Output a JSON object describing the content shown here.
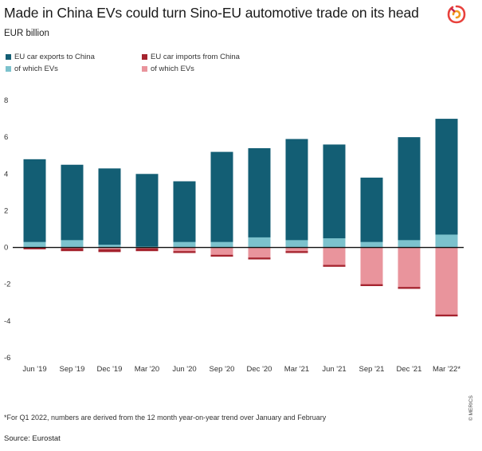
{
  "title": "Made in China EVs could turn Sino-EU automotive trade on its head",
  "subtitle": "EUR billion",
  "logo": {
    "icon": "merics-logo-icon"
  },
  "legend": [
    {
      "label": "EU car exports to China",
      "color": "#135e74"
    },
    {
      "label": "EU car imports from China",
      "color": "#a5232e"
    },
    {
      "label": "of which EVs",
      "color": "#7cc2cd"
    },
    {
      "label": "of which EVs",
      "color": "#e9949c"
    }
  ],
  "footnote": "*For Q1 2022, numbers are derived from the 12 month year-on-year trend over January and February",
  "source": "Source: Eurostat",
  "credit": "© MERICS",
  "chart_data": {
    "type": "bar",
    "title": "Made in China EVs could turn Sino-EU automotive trade on its head",
    "ylabel": "EUR billion",
    "xlabel": "",
    "ylim": [
      -6,
      8
    ],
    "yticks": [
      8,
      6,
      4,
      2,
      0,
      -2,
      -4,
      -6
    ],
    "categories": [
      "Jun '19",
      "Sep '19",
      "Dec '19",
      "Mar '20",
      "Jun '20",
      "Sep '20",
      "Dec '20",
      "Mar '21",
      "Jun '21",
      "Sep '21",
      "Dec '21",
      "Mar '22*"
    ],
    "series": [
      {
        "name": "EU car exports to China",
        "color": "#135e74",
        "values": [
          4.8,
          4.5,
          4.3,
          4.0,
          3.6,
          5.2,
          5.4,
          5.9,
          5.6,
          3.8,
          6.0,
          7.0
        ]
      },
      {
        "name": "EU car exports to China: of which EVs",
        "color": "#7cc2cd",
        "values": [
          0.3,
          0.4,
          0.15,
          0.05,
          0.3,
          0.3,
          0.55,
          0.4,
          0.5,
          0.3,
          0.4,
          0.7
        ]
      },
      {
        "name": "EU car imports from China",
        "color": "#a5232e",
        "values": [
          -0.1,
          -0.2,
          -0.25,
          -0.2,
          -0.3,
          -0.5,
          -0.65,
          -0.3,
          -1.05,
          -2.1,
          -2.25,
          -3.75
        ]
      },
      {
        "name": "EU car imports from China: of which EVs",
        "color": "#e9949c",
        "values": [
          0.0,
          -0.05,
          -0.1,
          -0.05,
          -0.2,
          -0.4,
          -0.55,
          -0.2,
          -0.95,
          -2.0,
          -2.15,
          -3.65
        ]
      }
    ],
    "zero_line_color": "#111111"
  }
}
